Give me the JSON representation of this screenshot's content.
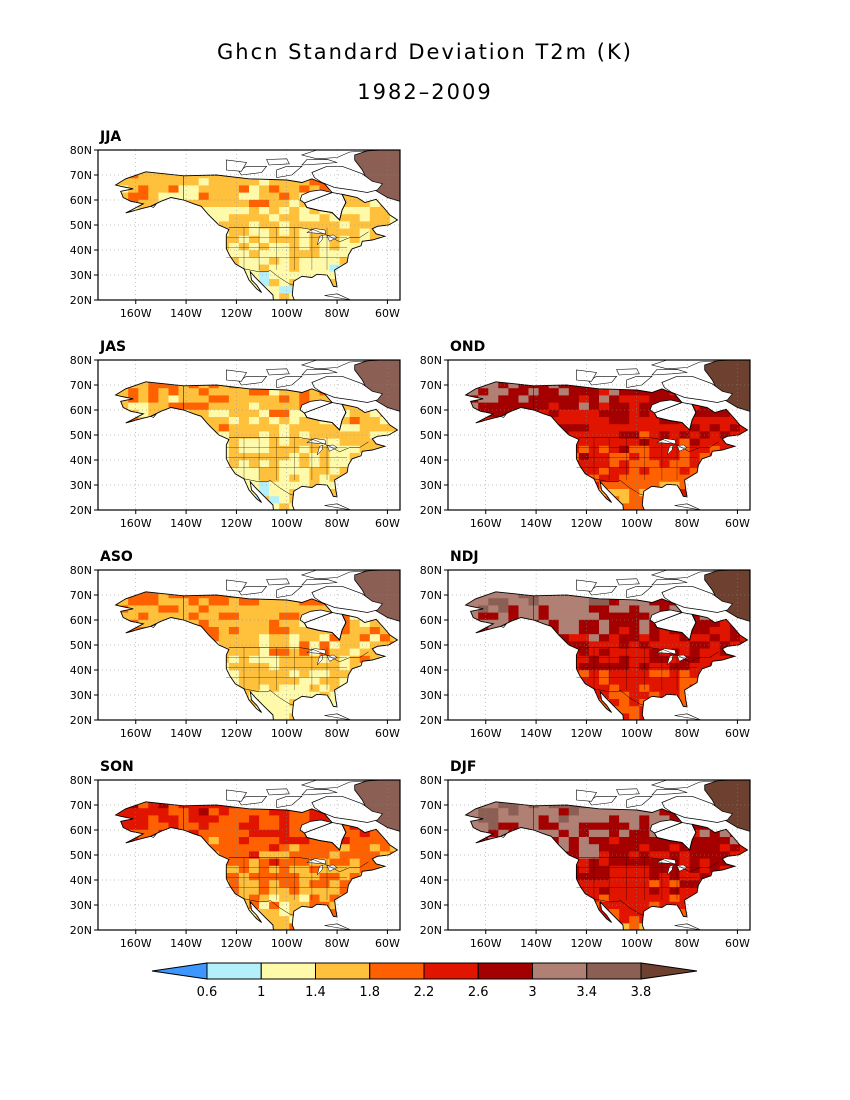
{
  "title": "Ghcn Standard Deviation T2m (K)",
  "subtitle": "1982–2009",
  "axes": {
    "lat_ticks": [
      "20N",
      "30N",
      "40N",
      "50N",
      "60N",
      "70N",
      "80N"
    ],
    "lon_ticks": [
      "160W",
      "140W",
      "120W",
      "100W",
      "80W",
      "60W"
    ],
    "lon_range": [
      -175,
      -55
    ],
    "lat_range": [
      20,
      80
    ],
    "grid": "dotted"
  },
  "panels": [
    {
      "label": "JJA",
      "intensity": 0.12
    },
    {
      "label": "JAS",
      "intensity": 0.14
    },
    {
      "label": "OND",
      "intensity": 0.72
    },
    {
      "label": "ASO",
      "intensity": 0.2
    },
    {
      "label": "NDJ",
      "intensity": 0.85
    },
    {
      "label": "SON",
      "intensity": 0.42
    },
    {
      "label": "DJF",
      "intensity": 0.88
    }
  ],
  "colorbar": {
    "levels": [
      "0.6",
      "1",
      "1.4",
      "1.8",
      "2.2",
      "2.6",
      "3",
      "3.4",
      "3.8"
    ],
    "colors": [
      "#3d97ff",
      "#b4f0fa",
      "#fffaaa",
      "#ffc03c",
      "#ff6000",
      "#e11400",
      "#a50000",
      "#af8073",
      "#8c5f55",
      "#6e4030"
    ]
  }
}
